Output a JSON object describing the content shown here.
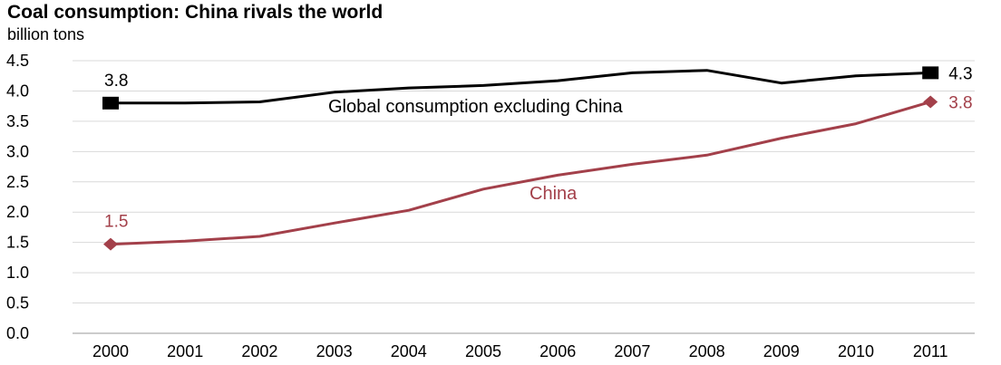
{
  "chart_data": {
    "type": "line",
    "title": "Coal consumption: China rivals the world",
    "ylabel": "billion tons",
    "xlabel": "",
    "categories": [
      "2000",
      "2001",
      "2002",
      "2003",
      "2004",
      "2005",
      "2006",
      "2007",
      "2008",
      "2009",
      "2010",
      "2011"
    ],
    "ylim": [
      0,
      4.5
    ],
    "yticks": [
      "0.0",
      "0.5",
      "1.0",
      "1.5",
      "2.0",
      "2.5",
      "3.0",
      "3.5",
      "4.0",
      "4.5"
    ],
    "grid": true,
    "series": [
      {
        "name": "Global consumption excluding China",
        "color": "#000000",
        "marker": "square",
        "values": [
          3.8,
          3.8,
          3.82,
          3.98,
          4.05,
          4.09,
          4.17,
          4.3,
          4.34,
          4.13,
          4.25,
          4.3
        ],
        "start_label": "3.8",
        "end_label": "4.3"
      },
      {
        "name": "China",
        "color": "#a3404a",
        "marker": "diamond",
        "values": [
          1.47,
          1.52,
          1.6,
          1.82,
          2.03,
          2.38,
          2.61,
          2.79,
          2.94,
          3.22,
          3.46,
          3.82
        ],
        "start_label": "1.5",
        "end_label": "3.8"
      }
    ]
  }
}
